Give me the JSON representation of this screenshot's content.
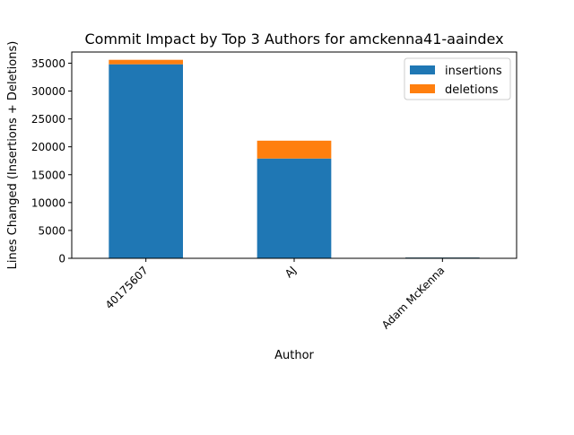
{
  "chart_data": {
    "type": "bar",
    "stacked": true,
    "title": "Commit Impact by Top 3 Authors for amckenna41-aaindex",
    "xlabel": "Author",
    "ylabel": "Lines Changed (Insertions + Deletions)",
    "categories": [
      "40175607",
      "AJ",
      "Adam McKenna"
    ],
    "series": [
      {
        "name": "insertions",
        "color": "#1f77b4",
        "values": [
          34800,
          17900,
          150
        ]
      },
      {
        "name": "deletions",
        "color": "#ff7f0e",
        "values": [
          800,
          3200,
          20
        ]
      }
    ],
    "ylim": [
      0,
      37000
    ],
    "yticks": [
      0,
      5000,
      10000,
      15000,
      20000,
      25000,
      30000,
      35000
    ],
    "grid": false,
    "legend_position": "top-right"
  }
}
